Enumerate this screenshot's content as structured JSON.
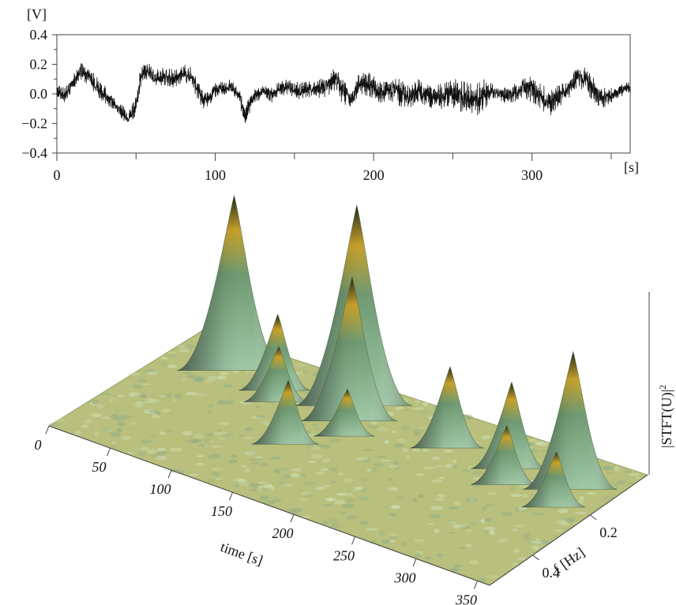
{
  "chart_data": [
    {
      "type": "line",
      "title": "",
      "ylabel": "[V]",
      "xlabel": "[s]",
      "xlim": [
        0,
        362
      ],
      "ylim": [
        -0.4,
        0.4
      ],
      "yticks": [
        {
          "value": 0.4,
          "label": "0.4"
        },
        {
          "value": 0.2,
          "label": "0.2"
        },
        {
          "value": 0.0,
          "label": "0.0"
        },
        {
          "value": -0.2,
          "label": "−0.2"
        },
        {
          "value": -0.4,
          "label": "−0.4"
        }
      ],
      "xticks": [
        {
          "value": 0,
          "label": "0"
        },
        {
          "value": 100,
          "label": "100"
        },
        {
          "value": 200,
          "label": "200"
        },
        {
          "value": 300,
          "label": "300"
        }
      ],
      "series_color": "#111111",
      "envelope": [
        [
          0,
          -0.03,
          0.06
        ],
        [
          5,
          -0.06,
          0.04
        ],
        [
          10,
          0.02,
          0.12
        ],
        [
          15,
          0.1,
          0.22
        ],
        [
          20,
          0.06,
          0.18
        ],
        [
          25,
          -0.02,
          0.12
        ],
        [
          30,
          -0.06,
          0.06
        ],
        [
          35,
          -0.1,
          -0.02
        ],
        [
          40,
          -0.16,
          -0.06
        ],
        [
          45,
          -0.22,
          -0.12
        ],
        [
          50,
          -0.14,
          -0.02
        ],
        [
          53,
          0.05,
          0.2
        ],
        [
          57,
          0.1,
          0.22
        ],
        [
          62,
          0.04,
          0.16
        ],
        [
          68,
          0.06,
          0.18
        ],
        [
          75,
          0.04,
          0.16
        ],
        [
          80,
          0.08,
          0.2
        ],
        [
          85,
          0.05,
          0.18
        ],
        [
          92,
          -0.1,
          0.02
        ],
        [
          96,
          -0.08,
          0.02
        ],
        [
          100,
          -0.02,
          0.08
        ],
        [
          105,
          -0.02,
          0.08
        ],
        [
          110,
          0.0,
          0.1
        ],
        [
          115,
          -0.06,
          0.04
        ],
        [
          119,
          -0.22,
          -0.1
        ],
        [
          122,
          -0.12,
          0.0
        ],
        [
          126,
          -0.06,
          0.04
        ],
        [
          131,
          -0.02,
          0.06
        ],
        [
          136,
          -0.06,
          0.04
        ],
        [
          140,
          -0.02,
          0.08
        ],
        [
          146,
          0.0,
          0.1
        ],
        [
          152,
          -0.04,
          0.08
        ],
        [
          158,
          -0.02,
          0.08
        ],
        [
          164,
          -0.03,
          0.1
        ],
        [
          170,
          -0.02,
          0.12
        ],
        [
          176,
          0.02,
          0.18
        ],
        [
          180,
          -0.06,
          0.1
        ],
        [
          186,
          -0.1,
          0.04
        ],
        [
          192,
          0.0,
          0.16
        ],
        [
          198,
          -0.02,
          0.14
        ],
        [
          204,
          -0.06,
          0.08
        ],
        [
          210,
          -0.04,
          0.12
        ],
        [
          216,
          -0.08,
          0.1
        ],
        [
          222,
          -0.1,
          0.06
        ],
        [
          228,
          -0.06,
          0.1
        ],
        [
          234,
          -0.08,
          0.06
        ],
        [
          240,
          -0.12,
          0.06
        ],
        [
          246,
          -0.08,
          0.08
        ],
        [
          252,
          -0.1,
          0.1
        ],
        [
          258,
          -0.14,
          0.08
        ],
        [
          264,
          -0.16,
          0.06
        ],
        [
          270,
          -0.1,
          0.1
        ],
        [
          276,
          -0.04,
          0.06
        ],
        [
          282,
          -0.06,
          0.04
        ],
        [
          288,
          -0.06,
          0.06
        ],
        [
          294,
          -0.02,
          0.1
        ],
        [
          300,
          -0.06,
          0.12
        ],
        [
          306,
          -0.1,
          0.06
        ],
        [
          312,
          -0.18,
          0.04
        ],
        [
          318,
          -0.08,
          0.06
        ],
        [
          324,
          -0.02,
          0.1
        ],
        [
          328,
          0.04,
          0.2
        ],
        [
          333,
          0.02,
          0.18
        ],
        [
          338,
          -0.04,
          0.12
        ],
        [
          344,
          -0.1,
          0.04
        ],
        [
          350,
          -0.06,
          0.04
        ],
        [
          356,
          -0.02,
          0.06
        ],
        [
          362,
          0.0,
          0.1
        ]
      ]
    },
    {
      "type": "surface",
      "title": "",
      "xlabel": "time [s]",
      "ylabel": "f [Hz]",
      "zlabel": "|STFT(U)|",
      "zlabel_sup": "2",
      "time_range": [
        0,
        360
      ],
      "freq_range": [
        0,
        0.55
      ],
      "time_ticks": [
        {
          "value": 0,
          "label": "0"
        },
        {
          "value": 50,
          "label": "50"
        },
        {
          "value": 100,
          "label": "100"
        },
        {
          "value": 150,
          "label": "150"
        },
        {
          "value": 200,
          "label": "200"
        },
        {
          "value": 250,
          "label": "250"
        },
        {
          "value": 300,
          "label": "300"
        },
        {
          "value": 350,
          "label": "350"
        }
      ],
      "freq_ticks": [
        {
          "value": 0.2,
          "label": "0.2"
        },
        {
          "value": 0.4,
          "label": "0.4"
        }
      ],
      "colors": {
        "base": "#b9bf7c",
        "mid": "#8fc2a4",
        "high": "#c9a227",
        "shadow": "#2b2b22"
      },
      "peaks": [
        {
          "time": 45,
          "freq": 0.1,
          "height": 1.0
        },
        {
          "time": 85,
          "freq": 0.12,
          "height": 0.42
        },
        {
          "time": 95,
          "freq": 0.16,
          "height": 0.3
        },
        {
          "time": 140,
          "freq": 0.08,
          "height": 1.15
        },
        {
          "time": 150,
          "freq": 0.14,
          "height": 0.82
        },
        {
          "time": 160,
          "freq": 0.2,
          "height": 0.25
        },
        {
          "time": 135,
          "freq": 0.3,
          "height": 0.35
        },
        {
          "time": 225,
          "freq": 0.12,
          "height": 0.45
        },
        {
          "time": 275,
          "freq": 0.12,
          "height": 0.48
        },
        {
          "time": 285,
          "freq": 0.18,
          "height": 0.32
        },
        {
          "time": 325,
          "freq": 0.12,
          "height": 0.78
        },
        {
          "time": 330,
          "freq": 0.2,
          "height": 0.3
        }
      ]
    }
  ]
}
